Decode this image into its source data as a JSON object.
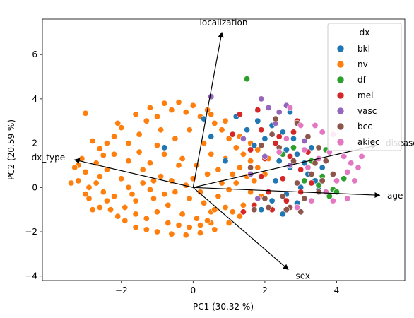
{
  "chart_data": {
    "type": "scatter",
    "title": "",
    "xlabel": "PC1 (30.32 %)",
    "ylabel": "PC2 (20.59 %)",
    "xlim": [
      -4.2,
      5.9
    ],
    "ylim": [
      -4.2,
      7.6
    ],
    "xticks": [
      -2,
      0,
      2,
      4
    ],
    "xtick_labels": [
      "−2",
      "0",
      "2",
      "4"
    ],
    "yticks": [
      -4,
      -2,
      0,
      2,
      4,
      6
    ],
    "ytick_labels": [
      "−4",
      "−2",
      "0",
      "2",
      "4",
      "6"
    ],
    "grid": false,
    "legend": {
      "title": "dx",
      "position": "top-right",
      "entries": [
        {
          "name": "bkl",
          "color": "#1f77b4"
        },
        {
          "name": "nv",
          "color": "#ff7f0e"
        },
        {
          "name": "df",
          "color": "#2ca02c"
        },
        {
          "name": "mel",
          "color": "#d62728"
        },
        {
          "name": "vasc",
          "color": "#9467bd"
        },
        {
          "name": "bcc",
          "color": "#8c564b"
        },
        {
          "name": "akiec",
          "color": "#e377c2"
        }
      ]
    },
    "loadings": [
      {
        "name": "localization",
        "x": 0.8,
        "y": 7.0
      },
      {
        "name": "disease",
        "x": 5.1,
        "y": 1.9
      },
      {
        "name": "age",
        "x": 5.2,
        "y": -0.35
      },
      {
        "name": "sex",
        "x": 2.65,
        "y": -3.7
      },
      {
        "name": "dx_type",
        "x": -3.3,
        "y": 1.25
      }
    ],
    "series": [
      {
        "name": "nv",
        "color": "#ff7f0e",
        "points": [
          [
            -3.0,
            3.35
          ],
          [
            -3.1,
            1.3
          ],
          [
            -3.2,
            1.0
          ],
          [
            -3.0,
            0.7
          ],
          [
            -3.2,
            0.3
          ],
          [
            -3.4,
            0.2
          ],
          [
            -2.9,
            0.0
          ],
          [
            -3.0,
            -0.3
          ],
          [
            -2.8,
            2.1
          ],
          [
            -2.6,
            1.75
          ],
          [
            -2.5,
            1.45
          ],
          [
            -2.7,
            1.1
          ],
          [
            -2.4,
            0.8
          ],
          [
            -2.6,
            0.5
          ],
          [
            -2.7,
            0.2
          ],
          [
            -2.5,
            -0.2
          ],
          [
            -2.9,
            -0.5
          ],
          [
            -2.4,
            -0.6
          ],
          [
            -2.6,
            -0.9
          ],
          [
            -2.3,
            -1.0
          ],
          [
            -2.1,
            -1.3
          ],
          [
            -1.9,
            -1.5
          ],
          [
            -1.6,
            -1.8
          ],
          [
            -1.3,
            -1.9
          ],
          [
            -1.0,
            -2.0
          ],
          [
            -0.6,
            -2.1
          ],
          [
            -0.2,
            -2.15
          ],
          [
            0.2,
            -2.05
          ],
          [
            0.6,
            -1.9
          ],
          [
            1.0,
            -1.6
          ],
          [
            1.3,
            -1.3
          ],
          [
            0.5,
            -1.6
          ],
          [
            -2.2,
            2.3
          ],
          [
            -2.0,
            2.7
          ],
          [
            -1.8,
            2.0
          ],
          [
            -1.5,
            2.4
          ],
          [
            -1.3,
            3.0
          ],
          [
            -1.2,
            3.6
          ],
          [
            -1.0,
            3.2
          ],
          [
            -0.8,
            3.8
          ],
          [
            -0.6,
            3.5
          ],
          [
            -0.4,
            3.85
          ],
          [
            -0.2,
            3.4
          ],
          [
            0.0,
            3.7
          ],
          [
            0.2,
            3.2
          ],
          [
            0.4,
            3.5
          ],
          [
            0.6,
            2.9
          ],
          [
            0.8,
            2.6
          ],
          [
            1.0,
            2.2
          ],
          [
            1.2,
            1.8
          ],
          [
            1.4,
            1.5
          ],
          [
            1.6,
            1.2
          ],
          [
            1.8,
            0.9
          ],
          [
            1.5,
            0.5
          ],
          [
            1.2,
            0.2
          ],
          [
            1.6,
            -0.2
          ],
          [
            -1.8,
            1.2
          ],
          [
            -1.5,
            1.6
          ],
          [
            -1.2,
            1.1
          ],
          [
            -1.0,
            1.9
          ],
          [
            -0.8,
            1.5
          ],
          [
            -0.5,
            2.2
          ],
          [
            -0.3,
            1.3
          ],
          [
            -0.1,
            2.6
          ],
          [
            0.1,
            1.0
          ],
          [
            0.3,
            2.0
          ],
          [
            0.5,
            1.5
          ],
          [
            0.7,
            0.8
          ],
          [
            0.9,
            1.3
          ],
          [
            1.1,
            0.6
          ],
          [
            1.3,
            0.9
          ],
          [
            -2.0,
            0.4
          ],
          [
            -1.7,
            -0.3
          ],
          [
            -1.4,
            0.2
          ],
          [
            -1.1,
            -0.5
          ],
          [
            -0.9,
            0.5
          ],
          [
            -0.7,
            -0.8
          ],
          [
            -0.5,
            -0.2
          ],
          [
            -0.3,
            -1.2
          ],
          [
            -0.1,
            -0.5
          ],
          [
            0.1,
            -1.4
          ],
          [
            0.3,
            -0.7
          ],
          [
            0.5,
            -1.1
          ],
          [
            0.7,
            -0.4
          ],
          [
            0.9,
            -0.9
          ],
          [
            1.1,
            -1.1
          ],
          [
            -1.9,
            -0.9
          ],
          [
            -1.6,
            -1.2
          ],
          [
            -1.3,
            -1.4
          ],
          [
            -1.0,
            -1.1
          ],
          [
            -0.7,
            -1.6
          ],
          [
            -0.4,
            -1.7
          ],
          [
            -0.1,
            -1.8
          ],
          [
            0.2,
            -1.7
          ],
          [
            -2.1,
            2.9
          ],
          [
            -1.6,
            3.3
          ],
          [
            -2.4,
            2.0
          ],
          [
            -2.2,
            -0.4
          ],
          [
            -1.8,
            0.0
          ],
          [
            -1.4,
            0.8
          ],
          [
            -1.2,
            -0.1
          ],
          [
            -0.9,
            2.6
          ],
          [
            -0.6,
            0.3
          ],
          [
            -0.4,
            1.0
          ],
          [
            0.0,
            0.4
          ],
          [
            0.2,
            -0.2
          ],
          [
            0.4,
            0.6
          ],
          [
            0.6,
            -1.0
          ],
          [
            0.8,
            0.2
          ],
          [
            1.0,
            -0.1
          ],
          [
            1.4,
            -0.8
          ],
          [
            1.7,
            0.3
          ],
          [
            1.9,
            -0.4
          ],
          [
            2.0,
            0.6
          ],
          [
            1.8,
            1.7
          ],
          [
            2.1,
            1.3
          ],
          [
            1.6,
            2.0
          ],
          [
            1.3,
            2.3
          ],
          [
            0.9,
            3.0
          ],
          [
            0.5,
            3.3
          ],
          [
            -3.3,
            0.9
          ],
          [
            -2.8,
            -1.0
          ],
          [
            -2.2,
            1.5
          ],
          [
            -1.6,
            -0.6
          ],
          [
            -1.1,
            0.3
          ],
          [
            -0.8,
            -0.3
          ],
          [
            -0.2,
            0.1
          ],
          [
            0.4,
            -1.5
          ]
        ]
      },
      {
        "name": "bkl",
        "color": "#1f77b4",
        "points": [
          [
            1.2,
            3.2
          ],
          [
            1.8,
            3.0
          ],
          [
            2.2,
            2.8
          ],
          [
            2.5,
            2.5
          ],
          [
            2.8,
            2.2
          ],
          [
            2.6,
            1.7
          ],
          [
            2.9,
            1.5
          ],
          [
            3.1,
            1.1
          ],
          [
            2.7,
            0.9
          ],
          [
            3.2,
            0.6
          ],
          [
            3.4,
            0.3
          ],
          [
            3.0,
            0.0
          ],
          [
            2.6,
            -0.3
          ],
          [
            2.2,
            -0.6
          ],
          [
            1.9,
            -1.0
          ],
          [
            2.4,
            1.2
          ],
          [
            1.5,
            2.6
          ],
          [
            2.0,
            2.2
          ],
          [
            3.3,
            1.8
          ],
          [
            2.3,
            0.3
          ],
          [
            0.3,
            3.1
          ],
          [
            0.5,
            2.3
          ],
          [
            -0.8,
            1.8
          ],
          [
            3.6,
            0.9
          ],
          [
            2.7,
            3.4
          ],
          [
            1.7,
            1.9
          ],
          [
            3.5,
            -0.1
          ],
          [
            2.9,
            -0.7
          ],
          [
            0.9,
            1.2
          ],
          [
            2.5,
            -1.2
          ]
        ]
      },
      {
        "name": "df",
        "color": "#2ca02c",
        "points": [
          [
            1.5,
            4.9
          ],
          [
            3.7,
            1.7
          ],
          [
            4.2,
            0.4
          ],
          [
            3.9,
            -0.1
          ],
          [
            3.6,
            0.5
          ],
          [
            3.3,
            1.2
          ],
          [
            2.8,
            1.8
          ],
          [
            3.8,
            -0.4
          ],
          [
            4.0,
            -0.2
          ],
          [
            3.5,
            0.1
          ],
          [
            2.5,
            1.5
          ],
          [
            3.1,
            0.3
          ]
        ]
      },
      {
        "name": "mel",
        "color": "#d62728",
        "points": [
          [
            1.3,
            3.3
          ],
          [
            1.9,
            2.6
          ],
          [
            2.3,
            2.0
          ],
          [
            2.7,
            1.4
          ],
          [
            3.0,
            0.8
          ],
          [
            2.5,
            0.4
          ],
          [
            2.1,
            -0.2
          ],
          [
            1.7,
            -0.8
          ],
          [
            2.8,
            2.5
          ],
          [
            1.6,
            1.7
          ],
          [
            3.2,
            1.6
          ],
          [
            2.4,
            2.3
          ],
          [
            1.9,
            0.5
          ],
          [
            2.6,
            -0.6
          ],
          [
            3.3,
            0.2
          ],
          [
            1.4,
            -1.1
          ],
          [
            2.0,
            1.3
          ],
          [
            2.9,
            3.0
          ],
          [
            1.1,
            2.4
          ],
          [
            3.0,
            -0.2
          ],
          [
            1.8,
            3.5
          ],
          [
            2.2,
            -1.0
          ]
        ]
      },
      {
        "name": "vasc",
        "color": "#9467bd",
        "points": [
          [
            0.5,
            4.1
          ],
          [
            1.9,
            4.0
          ],
          [
            2.1,
            3.6
          ],
          [
            2.6,
            3.7
          ],
          [
            2.3,
            2.9
          ],
          [
            2.0,
            1.4
          ],
          [
            1.6,
            0.6
          ],
          [
            2.7,
            1.0
          ],
          [
            3.1,
            2.1
          ],
          [
            1.4,
            2.2
          ],
          [
            2.4,
            3.4
          ],
          [
            1.8,
            -0.5
          ]
        ]
      },
      {
        "name": "bcc",
        "color": "#8c564b",
        "points": [
          [
            2.3,
            3.1
          ],
          [
            2.9,
            2.9
          ],
          [
            3.2,
            2.3
          ],
          [
            3.5,
            1.8
          ],
          [
            3.7,
            1.2
          ],
          [
            3.3,
            0.6
          ],
          [
            2.9,
            0.2
          ],
          [
            2.5,
            -0.4
          ],
          [
            2.1,
            -0.9
          ],
          [
            2.7,
            -0.9
          ],
          [
            3.1,
            -0.5
          ],
          [
            3.5,
            -0.2
          ],
          [
            3.9,
            0.6
          ],
          [
            2.4,
            1.8
          ],
          [
            2.8,
            1.2
          ],
          [
            1.6,
            0.9
          ],
          [
            2.0,
            -0.5
          ],
          [
            1.7,
            -1.0
          ],
          [
            3.4,
            1.1
          ],
          [
            2.2,
            2.4
          ],
          [
            2.6,
            -1.0
          ],
          [
            3.0,
            -1.1
          ],
          [
            1.9,
            1.9
          ],
          [
            3.6,
            0.3
          ]
        ]
      },
      {
        "name": "akiec",
        "color": "#e377c2",
        "points": [
          [
            2.7,
            3.6
          ],
          [
            3.0,
            2.8
          ],
          [
            3.4,
            2.8
          ],
          [
            3.6,
            2.5
          ],
          [
            3.9,
            2.4
          ],
          [
            4.1,
            2.0
          ],
          [
            3.8,
            1.6
          ],
          [
            4.2,
            1.4
          ],
          [
            4.4,
            1.1
          ],
          [
            4.3,
            0.7
          ],
          [
            4.0,
            0.3
          ],
          [
            3.7,
            -0.2
          ],
          [
            3.3,
            -0.6
          ],
          [
            2.9,
            -0.9
          ],
          [
            4.6,
            0.9
          ],
          [
            3.5,
            1.3
          ],
          [
            3.1,
            1.7
          ],
          [
            2.6,
            2.2
          ],
          [
            3.2,
            0.9
          ],
          [
            4.5,
            0.3
          ],
          [
            3.9,
            -0.6
          ],
          [
            4.3,
            -0.5
          ],
          [
            2.4,
            1.6
          ],
          [
            4.7,
            1.4
          ]
        ]
      }
    ]
  }
}
